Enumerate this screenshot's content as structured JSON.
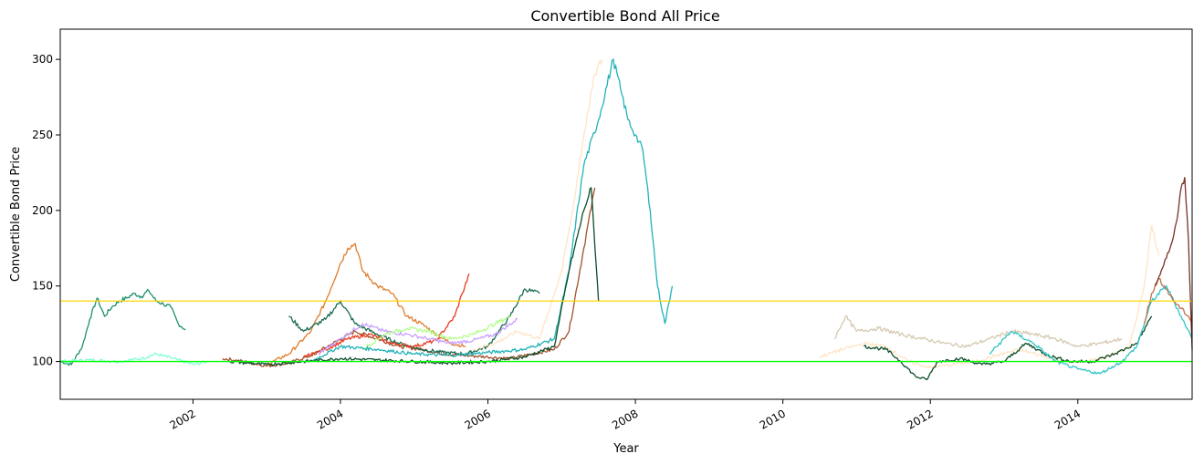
{
  "chart_data": {
    "type": "line",
    "title": "Convertible Bond All Price",
    "xlabel": "Year",
    "ylabel": "Convertible Bond Price",
    "xlim": [
      2000.2,
      2015.55
    ],
    "ylim": [
      75,
      320
    ],
    "xticks": [
      "2002",
      "2004",
      "2006",
      "2008",
      "2010",
      "2012",
      "2014"
    ],
    "yticks": [
      "100",
      "150",
      "200",
      "250",
      "300"
    ],
    "grid": false,
    "legend": "none",
    "reference_lines": [
      {
        "y": 140,
        "color": "#ffd700"
      },
      {
        "y": 100,
        "color": "#00ff00"
      }
    ],
    "series": [
      {
        "color": "#1f8f6e",
        "x": [
          2000.2,
          2000.35,
          2000.5,
          2000.6,
          2000.7,
          2000.8,
          2000.9,
          2001.0,
          2001.1,
          2001.2,
          2001.3,
          2001.4,
          2001.5,
          2001.6,
          2001.7,
          2001.8,
          2001.9
        ],
        "y": [
          100,
          98,
          110,
          128,
          142,
          130,
          136,
          140,
          142,
          145,
          143,
          147,
          140,
          138,
          136,
          125,
          121
        ]
      },
      {
        "color": "#7fffd4",
        "x": [
          2000.2,
          2000.6,
          2001.0,
          2001.3,
          2001.5,
          2001.8,
          2002.0,
          2002.2
        ],
        "y": [
          100,
          101,
          100,
          102,
          105,
          101,
          98,
          100
        ]
      },
      {
        "color": "#a0522d",
        "x": [
          2002.4,
          2002.7,
          2003.0,
          2003.3,
          2003.6,
          2003.9,
          2004.2,
          2004.5,
          2004.8,
          2005.1,
          2005.4,
          2005.7,
          2006.0,
          2006.3,
          2006.6,
          2006.9,
          2007.1,
          2007.3,
          2007.45
        ],
        "y": [
          102,
          100,
          97,
          99,
          104,
          112,
          120,
          115,
          110,
          108,
          105,
          104,
          103,
          102,
          105,
          108,
          120,
          175,
          215
        ]
      },
      {
        "color": "#e07b2a",
        "x": [
          2003.0,
          2003.3,
          2003.6,
          2003.8,
          2004.0,
          2004.1,
          2004.2,
          2004.3,
          2004.5,
          2004.7,
          2004.9,
          2005.1,
          2005.3,
          2005.5,
          2005.7
        ],
        "y": [
          98,
          105,
          120,
          140,
          165,
          175,
          178,
          160,
          150,
          145,
          130,
          125,
          118,
          112,
          110
        ]
      },
      {
        "color": "#1a6b4e",
        "x": [
          2003.3,
          2003.5,
          2003.8,
          2004.0,
          2004.2,
          2004.5,
          2004.8,
          2005.1,
          2005.4,
          2005.7,
          2006.0,
          2006.3,
          2006.5,
          2006.7
        ],
        "y": [
          130,
          120,
          128,
          140,
          125,
          118,
          112,
          108,
          106,
          105,
          110,
          130,
          148,
          145
        ]
      },
      {
        "color": "#e83a20",
        "x": [
          2003.5,
          2003.8,
          2004.1,
          2004.4,
          2004.7,
          2005.0,
          2005.3,
          2005.55,
          2005.65,
          2005.75
        ],
        "y": [
          103,
          108,
          115,
          118,
          112,
          110,
          114,
          130,
          145,
          158
        ]
      },
      {
        "color": "#c8a0ff",
        "x": [
          2003.7,
          2004.0,
          2004.3,
          2004.6,
          2004.9,
          2005.2,
          2005.5,
          2005.8,
          2006.1,
          2006.4
        ],
        "y": [
          105,
          115,
          125,
          120,
          118,
          115,
          112,
          114,
          118,
          128
        ]
      },
      {
        "color": "#b0ff8a",
        "x": [
          2004.3,
          2004.6,
          2004.9,
          2005.2,
          2005.5,
          2005.8,
          2006.1,
          2006.3
        ],
        "y": [
          108,
          118,
          122,
          120,
          115,
          118,
          125,
          130
        ]
      },
      {
        "color": "#ffe4c4",
        "x": [
          2005.8,
          2006.1,
          2006.4,
          2006.7,
          2007.0,
          2007.15,
          2007.3,
          2007.45,
          2007.55
        ],
        "y": [
          108,
          112,
          120,
          115,
          160,
          200,
          250,
          290,
          300
        ]
      },
      {
        "color": "#20b2b8",
        "x": [
          2003.6,
          2004.0,
          2004.5,
          2005.0,
          2005.5,
          2006.0,
          2006.5,
          2006.9,
          2007.1,
          2007.3,
          2007.5,
          2007.7,
          2007.8,
          2007.9,
          2008.0,
          2008.1,
          2008.2,
          2008.3,
          2008.4,
          2008.5
        ],
        "y": [
          100,
          110,
          108,
          105,
          104,
          106,
          108,
          115,
          160,
          230,
          260,
          300,
          280,
          260,
          250,
          240,
          200,
          150,
          125,
          150
        ]
      },
      {
        "color": "#0b4d2a",
        "x": [
          2002.5,
          2003.0,
          2003.5,
          2004.0,
          2004.5,
          2005.0,
          2005.5,
          2006.0,
          2006.5,
          2006.9,
          2007.1,
          2007.3,
          2007.4,
          2007.5
        ],
        "y": [
          100,
          98,
          100,
          102,
          101,
          100,
          99,
          100,
          103,
          110,
          160,
          200,
          215,
          140
        ]
      },
      {
        "color": "#d5c9b0",
        "x": [
          2010.7,
          2010.85,
          2011.0,
          2011.3,
          2011.6,
          2011.9,
          2012.2,
          2012.5,
          2012.8,
          2013.1,
          2013.4,
          2013.7,
          2014.0,
          2014.3,
          2014.6
        ],
        "y": [
          115,
          130,
          120,
          122,
          118,
          115,
          112,
          110,
          115,
          120,
          118,
          115,
          110,
          112,
          115
        ]
      },
      {
        "color": "#ffe4c4",
        "x": [
          2010.5,
          2010.8,
          2011.1,
          2011.4,
          2011.7,
          2012.0,
          2012.3,
          2012.6,
          2012.9,
          2013.2,
          2013.5,
          2013.8,
          2014.1,
          2014.4,
          2014.7,
          2014.9,
          2015.0,
          2015.1
        ],
        "y": [
          103,
          108,
          112,
          110,
          100,
          96,
          98,
          100,
          104,
          108,
          104,
          100,
          100,
          103,
          110,
          150,
          190,
          170
        ]
      },
      {
        "color": "#0b4d2a",
        "x": [
          2011.1,
          2011.4,
          2011.6,
          2011.8,
          2011.95,
          2012.1,
          2012.4,
          2012.7,
          2013.0,
          2013.3,
          2013.6,
          2013.9,
          2014.2,
          2014.5,
          2014.8,
          2015.0
        ],
        "y": [
          110,
          108,
          100,
          90,
          88,
          100,
          102,
          98,
          100,
          112,
          104,
          100,
          100,
          105,
          112,
          130
        ]
      },
      {
        "color": "#30c5c5",
        "x": [
          2012.8,
          2013.1,
          2013.4,
          2013.7,
          2014.0,
          2014.3,
          2014.6,
          2014.8,
          2015.0,
          2015.2,
          2015.4,
          2015.55
        ],
        "y": [
          105,
          120,
          112,
          100,
          95,
          92,
          100,
          110,
          140,
          150,
          130,
          115
        ]
      },
      {
        "color": "#c07050",
        "x": [
          2014.9,
          2015.0,
          2015.1,
          2015.2,
          2015.3,
          2015.4,
          2015.5,
          2015.55
        ],
        "y": [
          125,
          145,
          155,
          148,
          140,
          135,
          130,
          125
        ]
      },
      {
        "color": "#7a3025",
        "x": [
          2015.05,
          2015.15,
          2015.25,
          2015.35,
          2015.4,
          2015.45,
          2015.5,
          2015.55
        ],
        "y": [
          150,
          162,
          175,
          195,
          215,
          222,
          180,
          108
        ]
      }
    ]
  }
}
